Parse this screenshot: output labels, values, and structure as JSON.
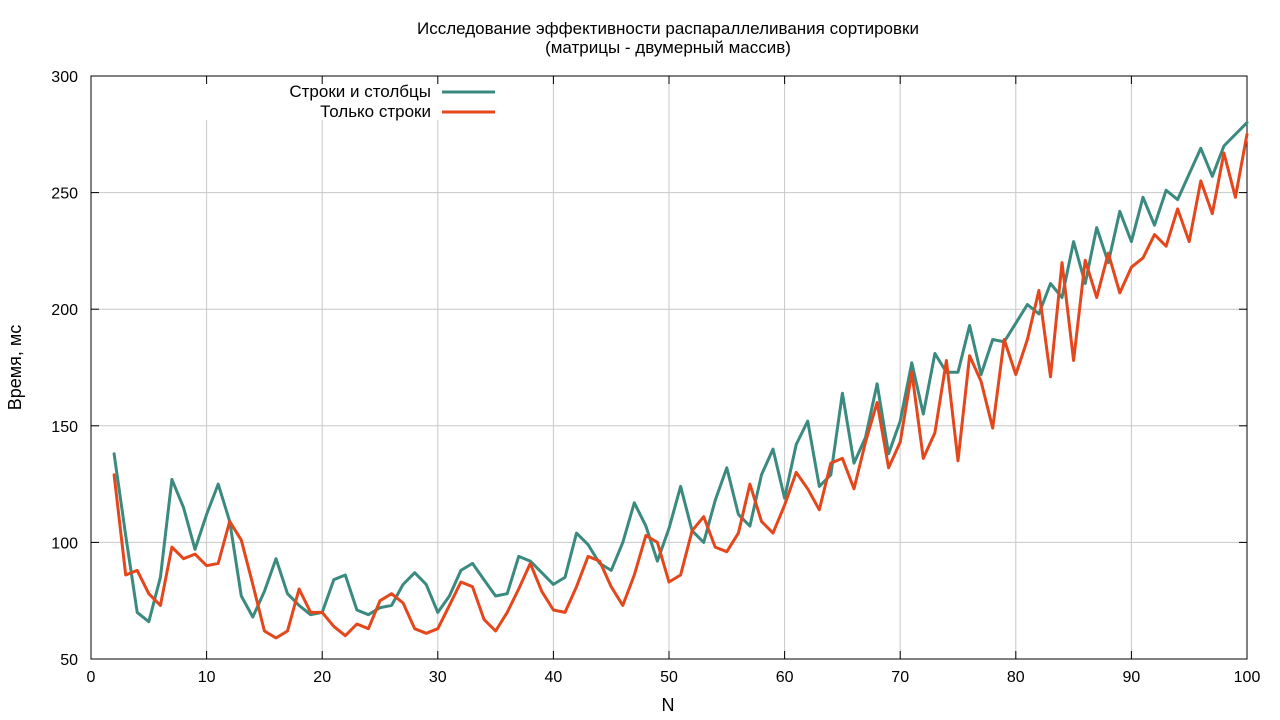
{
  "chart_data": {
    "type": "line",
    "title": "Исследование эффективности распараллеливания сортировки",
    "subtitle": "(матрицы - двумерный массив)",
    "xlabel": "N",
    "ylabel": "Время, мс",
    "xlim": [
      0,
      100
    ],
    "ylim": [
      50,
      300
    ],
    "x_ticks": [
      0,
      10,
      20,
      30,
      40,
      50,
      60,
      70,
      80,
      90,
      100
    ],
    "y_ticks": [
      50,
      100,
      150,
      200,
      250,
      300
    ],
    "grid": true,
    "legend_position": "top-left",
    "x": [
      2,
      3,
      4,
      5,
      6,
      7,
      8,
      9,
      10,
      11,
      12,
      13,
      14,
      15,
      16,
      17,
      18,
      19,
      20,
      21,
      22,
      23,
      24,
      25,
      26,
      27,
      28,
      29,
      30,
      31,
      32,
      33,
      34,
      35,
      36,
      37,
      38,
      39,
      40,
      41,
      42,
      43,
      44,
      45,
      46,
      47,
      48,
      49,
      50,
      51,
      52,
      53,
      54,
      55,
      56,
      57,
      58,
      59,
      60,
      61,
      62,
      63,
      64,
      65,
      66,
      67,
      68,
      69,
      70,
      71,
      72,
      73,
      74,
      75,
      76,
      77,
      78,
      79,
      80,
      81,
      82,
      83,
      84,
      85,
      86,
      87,
      88,
      89,
      90,
      91,
      92,
      93,
      94,
      95,
      96,
      97,
      98,
      99,
      100
    ],
    "series": [
      {
        "name": "Строки и столбцы",
        "color": "#3a8a80",
        "values": [
          138,
          103,
          70,
          66,
          85,
          127,
          115,
          97,
          112,
          125,
          109,
          77,
          68,
          79,
          93,
          78,
          73,
          69,
          70,
          84,
          86,
          71,
          69,
          72,
          73,
          82,
          87,
          82,
          70,
          77,
          88,
          91,
          84,
          77,
          78,
          94,
          92,
          87,
          82,
          85,
          104,
          99,
          91,
          88,
          100,
          117,
          107,
          92,
          106,
          124,
          105,
          100,
          118,
          132,
          112,
          107,
          129,
          140,
          119,
          142,
          152,
          124,
          129,
          164,
          134,
          145,
          168,
          138,
          152,
          177,
          155,
          181,
          173,
          173,
          193,
          172,
          187,
          186,
          194,
          202,
          198,
          211,
          205,
          229,
          211,
          235,
          220,
          242,
          229,
          248,
          236,
          251,
          247,
          258,
          269,
          257,
          270,
          275,
          280
        ]
      },
      {
        "name": "Только строки",
        "color": "#e5471c",
        "values": [
          129,
          86,
          88,
          78,
          73,
          98,
          93,
          95,
          90,
          91,
          109,
          101,
          82,
          62,
          59,
          62,
          80,
          70,
          70,
          64,
          60,
          65,
          63,
          75,
          78,
          74,
          63,
          61,
          63,
          73,
          83,
          81,
          67,
          62,
          70,
          80,
          91,
          79,
          71,
          70,
          81,
          94,
          92,
          81,
          73,
          86,
          103,
          100,
          83,
          86,
          105,
          111,
          98,
          96,
          104,
          125,
          109,
          104,
          116,
          130,
          123,
          114,
          134,
          136,
          123,
          143,
          160,
          132,
          143,
          173,
          136,
          147,
          178,
          135,
          180,
          169,
          149,
          187,
          172,
          187,
          208,
          171,
          220,
          178,
          221,
          205,
          224,
          207,
          218,
          222,
          232,
          227,
          243,
          229,
          255,
          241,
          267,
          248,
          275
        ]
      }
    ]
  }
}
